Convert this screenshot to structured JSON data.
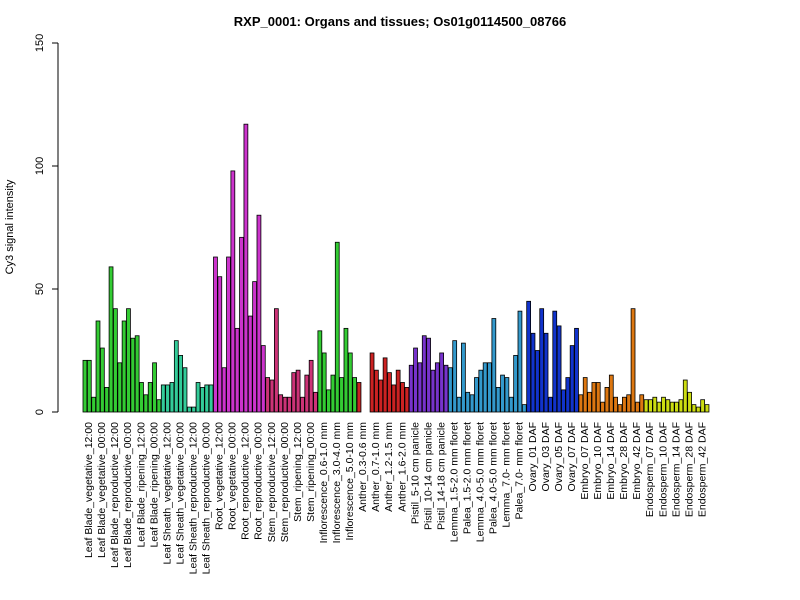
{
  "chart_data": {
    "type": "bar",
    "title": "RXP_0001: Organs and tissues; Os01g0114500_08766",
    "xlabel": "",
    "ylabel": "Cy3 signal intensity",
    "ylim": [
      0,
      150
    ],
    "yticks": [
      0,
      50,
      100,
      150
    ],
    "grid": false,
    "bar_outline_color": "#000000",
    "groups": [
      {
        "label": "Leaf Blade_vegetative_12:00",
        "color": "#33cc33",
        "values": [
          21,
          21,
          6
        ]
      },
      {
        "label": "Leaf Blade_vegetative_00:00",
        "color": "#33cc33",
        "values": [
          37,
          26,
          10
        ]
      },
      {
        "label": "Leaf Blade_reproductive_12:00",
        "color": "#33cc33",
        "values": [
          59,
          42,
          20
        ]
      },
      {
        "label": "Leaf Blade_reproductive_00:00",
        "color": "#33cc33",
        "values": [
          37,
          42,
          30
        ]
      },
      {
        "label": "Leaf Blade_ripening_12:00",
        "color": "#33cc33",
        "values": [
          31,
          12,
          7
        ]
      },
      {
        "label": "Leaf Blade_ripening_00:00",
        "color": "#33cc33",
        "values": [
          12,
          20,
          5
        ]
      },
      {
        "label": "Leaf Sheath_vegetative_12:00",
        "color": "#33cc99",
        "values": [
          11,
          11,
          12
        ]
      },
      {
        "label": "Leaf Sheath_vegetative_00:00",
        "color": "#33cc99",
        "values": [
          29,
          23,
          18
        ]
      },
      {
        "label": "Leaf Sheath_reproductive_12:00",
        "color": "#33cc99",
        "values": [
          2,
          2,
          12
        ]
      },
      {
        "label": "Leaf Sheath_reproductive_00:00",
        "color": "#33cc99",
        "values": [
          10,
          11,
          11
        ]
      },
      {
        "label": "Root_vegetative_12:00",
        "color": "#cc33cc",
        "values": [
          63,
          55,
          18
        ]
      },
      {
        "label": "Root_vegetative_00:00",
        "color": "#cc33cc",
        "values": [
          63,
          98,
          34
        ]
      },
      {
        "label": "Root_reproductive_12:00",
        "color": "#cc33cc",
        "values": [
          71,
          117,
          39
        ]
      },
      {
        "label": "Root_reproductive_00:00",
        "color": "#cc33cc",
        "values": [
          53,
          80,
          27
        ]
      },
      {
        "label": "Stem_reproductive_12:00",
        "color": "#cc3377",
        "values": [
          14,
          13,
          42
        ]
      },
      {
        "label": "Stem_reproductive_00:00",
        "color": "#cc3377",
        "values": [
          7,
          6,
          6
        ]
      },
      {
        "label": "Stem_ripening_12:00",
        "color": "#cc3377",
        "values": [
          16,
          17,
          6
        ]
      },
      {
        "label": "Stem_ripening_00:00",
        "color": "#cc3377",
        "values": [
          15,
          21,
          8
        ]
      },
      {
        "label": "Inflorescence_0.6-1.0 mm",
        "color": "#33cc33",
        "values": [
          33,
          24,
          9
        ]
      },
      {
        "label": "Inflorescence_3.0-4.0 mm",
        "color": "#33cc33",
        "values": [
          15,
          69,
          14
        ]
      },
      {
        "label": "Inflorescence_5.0-10 mm",
        "color": "#33cc33",
        "values": [
          34,
          24,
          14
        ]
      },
      {
        "label": "Anther_0.3-0.6 mm",
        "color": "#cc2222",
        "values": [
          12,
          0,
          0
        ]
      },
      {
        "label": "Anther_0.7-1.0 mm",
        "color": "#cc2222",
        "values": [
          24,
          17,
          13
        ]
      },
      {
        "label": "Anther_1.2-1.5 mm",
        "color": "#cc2222",
        "values": [
          22,
          16,
          11
        ]
      },
      {
        "label": "Anther_1.6-2.0 mm",
        "color": "#cc2222",
        "values": [
          17,
          12,
          10
        ]
      },
      {
        "label": "Pistil_5-10 cm panicle",
        "color": "#7733cc",
        "values": [
          19,
          26,
          20
        ]
      },
      {
        "label": "Pistil_10-14 cm panicle",
        "color": "#7733cc",
        "values": [
          31,
          30,
          17
        ]
      },
      {
        "label": "Pistil_14-18 cm panicle",
        "color": "#7733cc",
        "values": [
          20,
          24,
          19
        ]
      },
      {
        "label": "Lemma_1.5-2.0 mm floret",
        "color": "#3399cc",
        "values": [
          18,
          29,
          6
        ]
      },
      {
        "label": "Palea_1.5-2.0 mm floret",
        "color": "#3399cc",
        "values": [
          28,
          8,
          7
        ]
      },
      {
        "label": "Lemma_4.0-5.0 mm floret",
        "color": "#3399cc",
        "values": [
          14,
          17,
          20
        ]
      },
      {
        "label": "Palea_4.0-5.0 mm floret",
        "color": "#3399cc",
        "values": [
          20,
          38,
          10
        ]
      },
      {
        "label": "Lemma_7.0- mm floret",
        "color": "#3399cc",
        "values": [
          15,
          14,
          6
        ]
      },
      {
        "label": "Palea_7.0- mm floret",
        "color": "#3399cc",
        "values": [
          23,
          41,
          3
        ]
      },
      {
        "label": "Ovary_01 DAF",
        "color": "#1133cc",
        "values": [
          45,
          32,
          25
        ]
      },
      {
        "label": "Ovary_03 DAF",
        "color": "#1133cc",
        "values": [
          42,
          32,
          6
        ]
      },
      {
        "label": "Ovary_05 DAF",
        "color": "#1133cc",
        "values": [
          41,
          35,
          9
        ]
      },
      {
        "label": "Ovary_07 DAF",
        "color": "#1133cc",
        "values": [
          14,
          27,
          34
        ]
      },
      {
        "label": "Embryo_07 DAF",
        "color": "#dd7711",
        "values": [
          7,
          14,
          8
        ]
      },
      {
        "label": "Embryo_10 DAF",
        "color": "#dd7711",
        "values": [
          12,
          12,
          4
        ]
      },
      {
        "label": "Embryo_14 DAF",
        "color": "#dd7711",
        "values": [
          10,
          15,
          6
        ]
      },
      {
        "label": "Embryo_28 DAF",
        "color": "#dd7711",
        "values": [
          3,
          6,
          7
        ]
      },
      {
        "label": "Embryo_42 DAF",
        "color": "#dd7711",
        "values": [
          42,
          4,
          7
        ]
      },
      {
        "label": "Endosperm_07 DAF",
        "color": "#ccdd11",
        "values": [
          5,
          5,
          6
        ]
      },
      {
        "label": "Endosperm_10 DAF",
        "color": "#ccdd11",
        "values": [
          4,
          6,
          5
        ]
      },
      {
        "label": "Endosperm_14 DAF",
        "color": "#ccdd11",
        "values": [
          4,
          4,
          5
        ]
      },
      {
        "label": "Endosperm_28 DAF",
        "color": "#ccdd11",
        "values": [
          13,
          8,
          3
        ]
      },
      {
        "label": "Endosperm_42 DAF",
        "color": "#ccdd11",
        "values": [
          2,
          5,
          3
        ]
      }
    ]
  }
}
